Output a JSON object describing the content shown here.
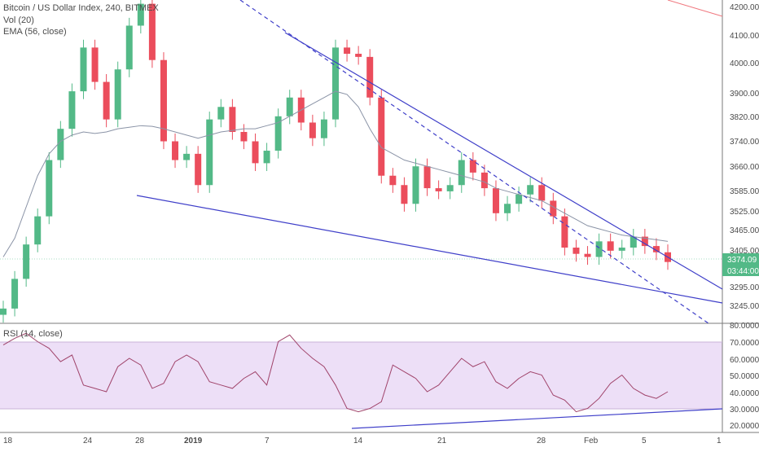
{
  "legend": {
    "symbol": "Bitcoin / US Dollar Index, 240, BITMEX",
    "vol": "Vol (20)",
    "ema": "EMA (56, close)",
    "rsi": "RSI (14, close)"
  },
  "price_axis": {
    "ticks": [
      "4200.00",
      "4100.00",
      "4000.00",
      "3900.00",
      "3820.00",
      "3740.00",
      "3660.00",
      "3585.00",
      "3525.00",
      "3465.00",
      "3405.00",
      "3295.00",
      "3245.00"
    ],
    "last_price": "3374.09",
    "countdown": "03:44:00"
  },
  "rsi_axis": {
    "ticks": [
      "80.0000",
      "70.0000",
      "60.0000",
      "50.0000",
      "40.0000",
      "30.0000",
      "20.0000"
    ]
  },
  "time_axis": {
    "labels": [
      "18",
      "24",
      "28",
      "2019",
      "7",
      "14",
      "21",
      "28",
      "Feb",
      "5",
      "1"
    ]
  },
  "colors": {
    "up": "#53b987",
    "down": "#eb4d5c",
    "trendline": "#3f3fc9",
    "ema": "#8a93a6",
    "rsi_line": "#a0446b",
    "rsi_band": "#eddff7",
    "price_tag": "#53b987"
  },
  "chart_data": {
    "type": "candlestick",
    "title": "Bitcoin / US Dollar Index, 240, BITMEX",
    "series": [
      {
        "name": "Bitcoin / US Dollar Index",
        "type": "ohlc",
        "close": [
          3225,
          3320,
          3430,
          3520,
          3700,
          3800,
          3920,
          4060,
          3950,
          3830,
          3990,
          4130,
          4200,
          4020,
          3760,
          3700,
          3720,
          3620,
          3830,
          3870,
          3790,
          3760,
          3690,
          3730,
          3840,
          3900,
          3820,
          3770,
          3830,
          4060,
          4040,
          4030,
          3900,
          3650,
          3620,
          3560,
          3680,
          3610,
          3600,
          3620,
          3700,
          3660,
          3610,
          3530,
          3560,
          3590,
          3620,
          3570,
          3520,
          3420,
          3400,
          3390,
          3440,
          3410,
          3420,
          3455,
          3425,
          3405,
          3374
        ]
      },
      {
        "name": "EMA (56, close)",
        "type": "line",
        "values": [
          3390,
          3450,
          3550,
          3650,
          3720,
          3760,
          3780,
          3790,
          3785,
          3790,
          3800,
          3805,
          3810,
          3808,
          3800,
          3790,
          3780,
          3770,
          3780,
          3790,
          3795,
          3800,
          3800,
          3810,
          3820,
          3840,
          3860,
          3880,
          3900,
          3920,
          3910,
          3870,
          3800,
          3740,
          3720,
          3700,
          3690,
          3680,
          3670,
          3660,
          3650,
          3640,
          3630,
          3610,
          3600,
          3590,
          3580,
          3570,
          3550,
          3530,
          3510,
          3490,
          3480,
          3470,
          3460,
          3455,
          3450,
          3445,
          3440
        ]
      },
      {
        "name": "RSI (14, close)",
        "type": "line",
        "values": [
          68,
          72,
          75,
          70,
          66,
          58,
          62,
          44,
          42,
          40,
          55,
          60,
          56,
          42,
          45,
          58,
          62,
          58,
          46,
          44,
          42,
          48,
          52,
          44,
          70,
          74,
          66,
          60,
          55,
          44,
          30,
          28,
          30,
          34,
          56,
          52,
          48,
          40,
          44,
          52,
          60,
          55,
          58,
          46,
          42,
          48,
          52,
          50,
          38,
          35,
          28,
          30,
          36,
          45,
          50,
          42,
          38,
          36,
          40
        ]
      }
    ],
    "ylabel": "",
    "xlabel": "",
    "trendlines": [
      "upper wedge line",
      "lower wedge line",
      "dashed channel line",
      "RSI support line"
    ],
    "rsi_bands": [
      30,
      70
    ],
    "last_price": 3374.09
  }
}
